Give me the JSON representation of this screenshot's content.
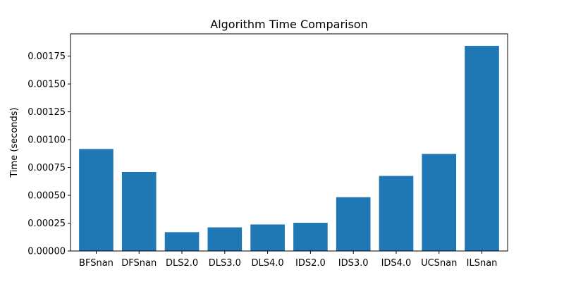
{
  "chart_data": {
    "type": "bar",
    "title": "Algorithm Time Comparison",
    "xlabel": "",
    "ylabel": "Time (seconds)",
    "categories": [
      "BFSnan",
      "DFSnan",
      "DLS2.0",
      "DLS3.0",
      "DLS4.0",
      "IDS2.0",
      "IDS3.0",
      "IDS4.0",
      "UCSnan",
      "ILSnan"
    ],
    "values": [
      0.000916,
      0.000709,
      0.000169,
      0.000212,
      0.000238,
      0.000253,
      0.000483,
      0.000674,
      0.000872,
      0.001842
    ],
    "ylim": [
      0,
      0.00195
    ],
    "yticks": [
      0,
      0.00025,
      0.0005,
      0.00075,
      0.001,
      0.00125,
      0.0015,
      0.00175
    ],
    "ytick_labels": [
      "0.00000",
      "0.00025",
      "0.00050",
      "0.00075",
      "0.00100",
      "0.00125",
      "0.00150",
      "0.00175"
    ],
    "bar_color": "#1f77b4",
    "grid": false,
    "legend": "none"
  }
}
